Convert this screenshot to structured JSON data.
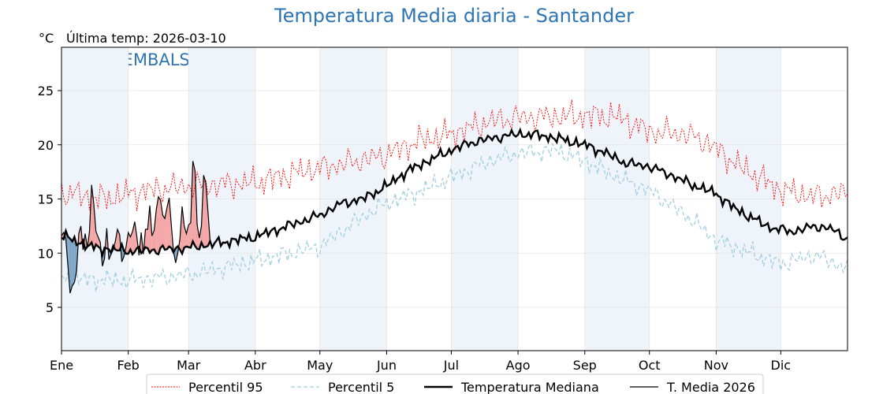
{
  "title": "Temperatura Media diaria - Santander",
  "unit": "°C",
  "last_temp": "Última temp: 2026-03-10",
  "watermark": "WWW.EMBALSES.NET",
  "colors": {
    "p95": "#ff0000",
    "p5": "#9fcfdf",
    "median": "#000000",
    "current": "#000000",
    "above_fill": "#f4a6a6",
    "below_fill": "#7ea6c8",
    "month_band": "#eef4fa",
    "title": "#2e75b6"
  },
  "chart_data": {
    "type": "line",
    "title": "Temperatura Media diaria - Santander",
    "ylabel": "°C",
    "ylim": [
      1,
      29
    ],
    "xlim": [
      0,
      365
    ],
    "yticks": [
      5,
      10,
      15,
      20,
      25
    ],
    "months": [
      "Ene",
      "Feb",
      "Mar",
      "Abr",
      "May",
      "Jun",
      "Jul",
      "Ago",
      "Sep",
      "Oct",
      "Nov",
      "Dic"
    ],
    "month_starts": [
      0,
      31,
      59,
      90,
      120,
      151,
      181,
      212,
      243,
      273,
      304,
      334
    ],
    "grid": true,
    "legend_position": "bottom",
    "series": [
      {
        "name": "Percentil 95",
        "style": "dotted",
        "knots": [
          [
            0,
            15.6
          ],
          [
            20,
            15.0
          ],
          [
            40,
            15.8
          ],
          [
            60,
            16.2
          ],
          [
            90,
            16.5
          ],
          [
            110,
            17.5
          ],
          [
            130,
            18.2
          ],
          [
            150,
            19.0
          ],
          [
            165,
            20.3
          ],
          [
            181,
            21.0
          ],
          [
            200,
            22.2
          ],
          [
            212,
            22.5
          ],
          [
            230,
            22.6
          ],
          [
            243,
            22.7
          ],
          [
            258,
            22.6
          ],
          [
            273,
            21.2
          ],
          [
            290,
            21.0
          ],
          [
            300,
            20.2
          ],
          [
            315,
            18.0
          ],
          [
            334,
            15.8
          ],
          [
            350,
            15.2
          ],
          [
            365,
            15.6
          ]
        ]
      },
      {
        "name": "Percentil 5",
        "style": "dashed",
        "knots": [
          [
            0,
            7.6
          ],
          [
            31,
            7.5
          ],
          [
            59,
            8.0
          ],
          [
            90,
            9.3
          ],
          [
            120,
            10.6
          ],
          [
            140,
            13.4
          ],
          [
            151,
            14.6
          ],
          [
            170,
            16.0
          ],
          [
            181,
            17.0
          ],
          [
            200,
            18.6
          ],
          [
            212,
            19.2
          ],
          [
            230,
            19.5
          ],
          [
            243,
            18.5
          ],
          [
            258,
            17.0
          ],
          [
            273,
            15.8
          ],
          [
            290,
            13.5
          ],
          [
            304,
            11.2
          ],
          [
            320,
            10.0
          ],
          [
            334,
            9.0
          ],
          [
            350,
            9.8
          ],
          [
            365,
            8.6
          ]
        ]
      },
      {
        "name": "Temperatura Mediana",
        "style": "solid-thick",
        "knots": [
          [
            0,
            11.6
          ],
          [
            15,
            10.5
          ],
          [
            31,
            10.2
          ],
          [
            45,
            10.3
          ],
          [
            59,
            10.5
          ],
          [
            75,
            11.0
          ],
          [
            90,
            11.5
          ],
          [
            105,
            12.5
          ],
          [
            120,
            13.5
          ],
          [
            130,
            14.6
          ],
          [
            140,
            15.0
          ],
          [
            151,
            16.2
          ],
          [
            160,
            17.5
          ],
          [
            170,
            18.5
          ],
          [
            181,
            19.5
          ],
          [
            190,
            20.2
          ],
          [
            200,
            20.6
          ],
          [
            212,
            21.0
          ],
          [
            222,
            20.9
          ],
          [
            230,
            20.6
          ],
          [
            243,
            20.0
          ],
          [
            252,
            19.3
          ],
          [
            262,
            18.3
          ],
          [
            273,
            18.0
          ],
          [
            283,
            17.2
          ],
          [
            293,
            16.3
          ],
          [
            304,
            15.5
          ],
          [
            312,
            14.2
          ],
          [
            320,
            13.3
          ],
          [
            330,
            12.3
          ],
          [
            340,
            12.0
          ],
          [
            350,
            12.5
          ],
          [
            358,
            12.2
          ],
          [
            365,
            11.3
          ]
        ]
      },
      {
        "name": "T. Media 2026",
        "style": "solid-thin",
        "values": [
          11.6,
          11.9,
          11.3,
          8.8,
          6.3,
          7.0,
          7.3,
          8.3,
          11.8,
          12.5,
          10.3,
          11.8,
          10.5,
          12.0,
          16.3,
          14.5,
          12.0,
          11.5,
          11.0,
          8.8,
          9.5,
          12.3,
          9.4,
          9.9,
          10.3,
          11.1,
          12.2,
          11.7,
          9.2,
          9.7,
          10.6,
          11.9,
          11.5,
          12.0,
          12.9,
          11.5,
          9.8,
          11.9,
          9.9,
          12.2,
          12.2,
          14.4,
          11.6,
          12.1,
          14.0,
          15.2,
          14.9,
          13.5,
          13.2,
          14.2,
          15.1,
          12.6,
          10.2,
          9.1,
          10.0,
          11.3,
          14.3,
          12.5,
          11.8,
          12.6,
          12.8,
          18.5,
          17.6,
          12.6,
          11.4,
          12.5,
          17.2,
          16.5,
          13.9,
          11.1
        ]
      }
    ]
  },
  "legend": [
    {
      "label": "Percentil 95",
      "style": "dotted",
      "color": "#ff0000"
    },
    {
      "label": "Percentil 5",
      "style": "dashed",
      "color": "#9fcfdf"
    },
    {
      "label": "Temperatura Mediana",
      "style": "thick",
      "color": "#000000"
    },
    {
      "label": "T. Media 2026",
      "style": "thin",
      "color": "#000000"
    }
  ]
}
